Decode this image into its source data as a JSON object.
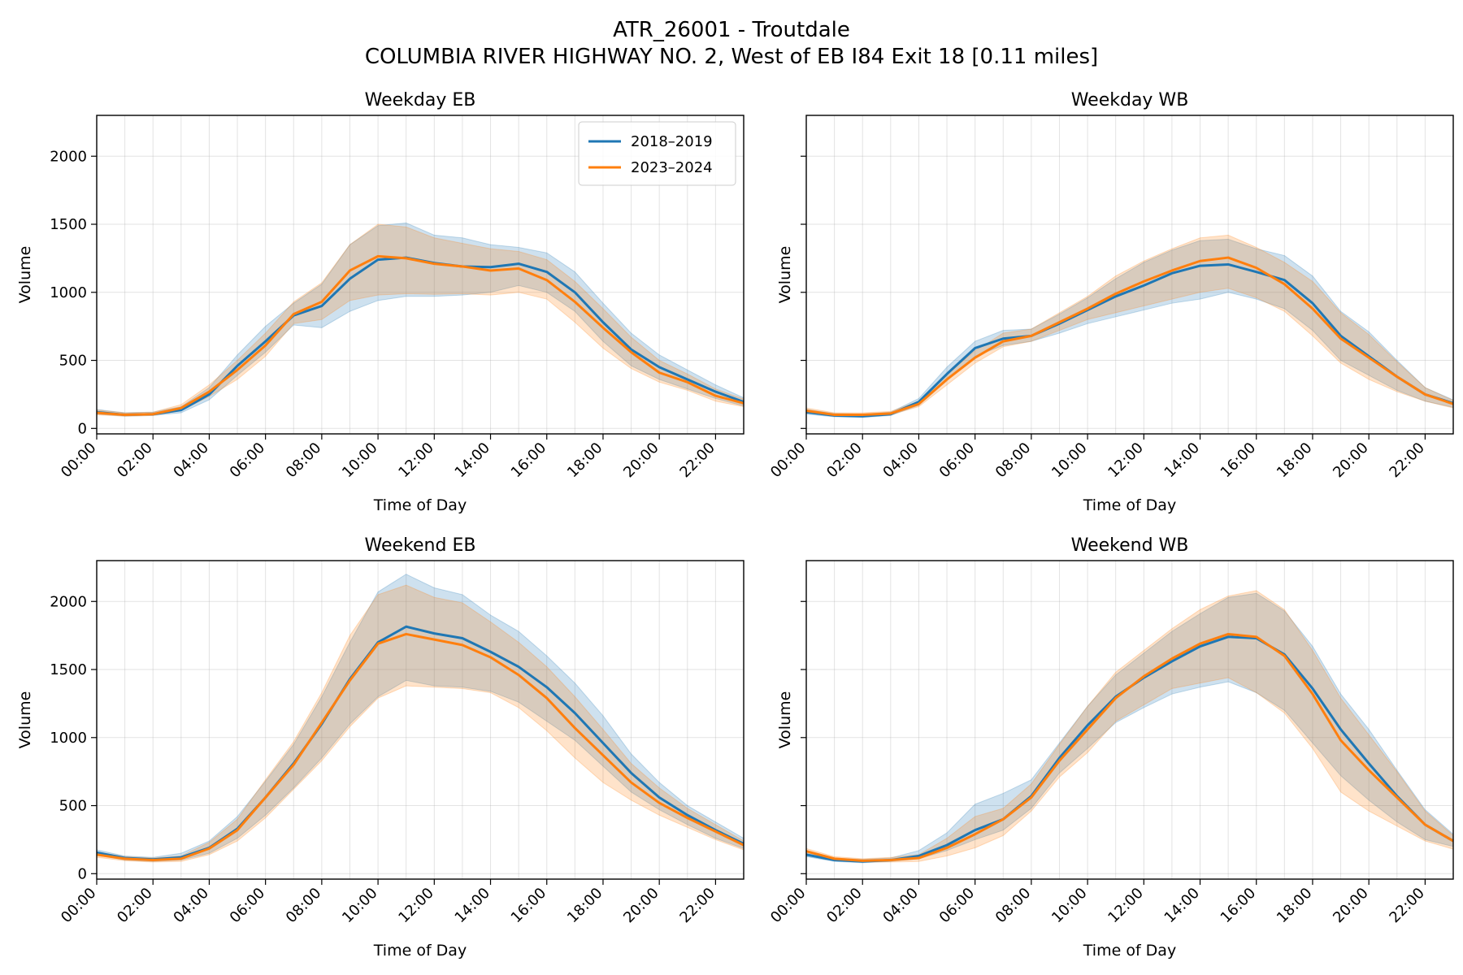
{
  "figure": {
    "title_line1": "ATR_26001 - Troutdale",
    "title_line2": "COLUMBIA RIVER HIGHWAY NO. 2, West of EB I84 Exit 18 [0.11 miles]"
  },
  "colors": {
    "series_2018_2019": "#1f77b4",
    "series_2023_2024": "#ff7f0e"
  },
  "chart_data": [
    {
      "type": "line",
      "title": "Weekday EB",
      "xlabel": "Time of Day",
      "ylabel": "Volume",
      "x_ticks": [
        "00:00",
        "02:00",
        "04:00",
        "06:00",
        "08:00",
        "10:00",
        "12:00",
        "14:00",
        "16:00",
        "18:00",
        "20:00",
        "22:00"
      ],
      "yticks": [
        0,
        500,
        1000,
        1500,
        2000
      ],
      "xlim": [
        0,
        23
      ],
      "ylim": [
        -40,
        2300
      ],
      "grid": true,
      "legend": "top-right",
      "hours": [
        0,
        1,
        2,
        3,
        4,
        5,
        6,
        7,
        8,
        9,
        10,
        11,
        12,
        13,
        14,
        15,
        16,
        17,
        18,
        19,
        20,
        21,
        22,
        23
      ],
      "series": [
        {
          "name": "2018–2019",
          "color": "#1f77b4",
          "values": [
            120,
            100,
            105,
            135,
            250,
            460,
            640,
            830,
            900,
            1100,
            1240,
            1255,
            1215,
            1190,
            1185,
            1210,
            1150,
            1000,
            780,
            580,
            450,
            360,
            270,
            195
          ],
          "lower": [
            105,
            90,
            95,
            115,
            210,
            390,
            560,
            760,
            740,
            860,
            940,
            970,
            970,
            980,
            1000,
            1050,
            1000,
            860,
            640,
            460,
            360,
            290,
            220,
            165
          ],
          "upper": [
            140,
            115,
            120,
            160,
            300,
            540,
            750,
            920,
            1060,
            1350,
            1490,
            1510,
            1420,
            1400,
            1350,
            1330,
            1290,
            1150,
            920,
            700,
            540,
            430,
            320,
            225
          ]
        },
        {
          "name": "2023–2024",
          "color": "#ff7f0e",
          "values": [
            115,
            100,
            105,
            150,
            270,
            430,
            610,
            840,
            930,
            1160,
            1265,
            1250,
            1210,
            1190,
            1160,
            1175,
            1090,
            930,
            740,
            560,
            410,
            340,
            240,
            185
          ],
          "lower": [
            100,
            90,
            95,
            130,
            235,
            360,
            530,
            770,
            800,
            940,
            980,
            990,
            985,
            990,
            980,
            1000,
            950,
            780,
            590,
            440,
            340,
            280,
            200,
            160
          ],
          "upper": [
            135,
            115,
            120,
            175,
            320,
            500,
            700,
            930,
            1070,
            1350,
            1500,
            1480,
            1400,
            1360,
            1320,
            1300,
            1240,
            1080,
            880,
            670,
            500,
            400,
            290,
            215
          ]
        }
      ]
    },
    {
      "type": "line",
      "title": "Weekday WB",
      "xlabel": "Time of Day",
      "ylabel": "Volume",
      "x_ticks": [
        "00:00",
        "02:00",
        "04:00",
        "06:00",
        "08:00",
        "10:00",
        "12:00",
        "14:00",
        "16:00",
        "18:00",
        "20:00",
        "22:00"
      ],
      "yticks": [
        0,
        500,
        1000,
        1500,
        2000
      ],
      "xlim": [
        0,
        23
      ],
      "ylim": [
        -40,
        2300
      ],
      "grid": true,
      "hours": [
        0,
        1,
        2,
        3,
        4,
        5,
        6,
        7,
        8,
        9,
        10,
        11,
        12,
        13,
        14,
        15,
        16,
        17,
        18,
        19,
        20,
        21,
        22,
        23
      ],
      "series": [
        {
          "name": "2018–2019",
          "color": "#1f77b4",
          "values": [
            120,
            95,
            90,
            105,
            195,
            400,
            590,
            660,
            680,
            770,
            870,
            970,
            1050,
            1140,
            1195,
            1205,
            1150,
            1090,
            920,
            680,
            530,
            380,
            250,
            185
          ],
          "lower": [
            105,
            85,
            80,
            95,
            170,
            350,
            530,
            610,
            640,
            700,
            770,
            820,
            870,
            920,
            950,
            1000,
            950,
            880,
            720,
            500,
            390,
            280,
            200,
            155
          ],
          "upper": [
            140,
            110,
            105,
            120,
            220,
            450,
            640,
            720,
            730,
            840,
            960,
            1100,
            1220,
            1310,
            1380,
            1390,
            1320,
            1270,
            1120,
            860,
            710,
            500,
            300,
            210
          ]
        },
        {
          "name": "2023–2024",
          "color": "#ff7f0e",
          "values": [
            130,
            100,
            100,
            110,
            180,
            360,
            520,
            640,
            680,
            780,
            880,
            990,
            1080,
            1160,
            1230,
            1255,
            1180,
            1060,
            880,
            660,
            520,
            380,
            250,
            180
          ],
          "lower": [
            115,
            90,
            90,
            100,
            160,
            320,
            480,
            600,
            640,
            720,
            800,
            850,
            900,
            950,
            1000,
            1030,
            960,
            860,
            680,
            480,
            360,
            270,
            200,
            150
          ],
          "upper": [
            150,
            115,
            115,
            125,
            200,
            400,
            570,
            700,
            730,
            850,
            970,
            1120,
            1230,
            1320,
            1400,
            1420,
            1330,
            1220,
            1080,
            850,
            690,
            490,
            300,
            205
          ]
        }
      ]
    },
    {
      "type": "line",
      "title": "Weekend EB",
      "xlabel": "Time of Day",
      "ylabel": "Volume",
      "x_ticks": [
        "00:00",
        "02:00",
        "04:00",
        "06:00",
        "08:00",
        "10:00",
        "12:00",
        "14:00",
        "16:00",
        "18:00",
        "20:00",
        "22:00"
      ],
      "yticks": [
        0,
        500,
        1000,
        1500,
        2000
      ],
      "xlim": [
        0,
        23
      ],
      "ylim": [
        -40,
        2300
      ],
      "grid": true,
      "hours": [
        0,
        1,
        2,
        3,
        4,
        5,
        6,
        7,
        8,
        9,
        10,
        11,
        12,
        13,
        14,
        15,
        16,
        17,
        18,
        19,
        20,
        21,
        22,
        23
      ],
      "series": [
        {
          "name": "2018–2019",
          "color": "#1f77b4",
          "values": [
            155,
            115,
            105,
            120,
            190,
            330,
            560,
            810,
            1100,
            1430,
            1700,
            1815,
            1765,
            1730,
            1630,
            1520,
            1370,
            1180,
            960,
            740,
            560,
            430,
            320,
            220
          ],
          "lower": [
            135,
            100,
            90,
            100,
            150,
            260,
            430,
            630,
            850,
            1100,
            1300,
            1420,
            1380,
            1370,
            1340,
            1260,
            1120,
            980,
            790,
            600,
            470,
            360,
            260,
            185
          ],
          "upper": [
            175,
            130,
            120,
            150,
            240,
            420,
            680,
            950,
            1300,
            1700,
            2070,
            2200,
            2100,
            2050,
            1900,
            1780,
            1600,
            1400,
            1160,
            880,
            670,
            500,
            380,
            260
          ]
        },
        {
          "name": "2023–2024",
          "color": "#ff7f0e",
          "values": [
            140,
            110,
            100,
            110,
            185,
            320,
            560,
            800,
            1110,
            1420,
            1690,
            1760,
            1720,
            1680,
            1590,
            1460,
            1290,
            1070,
            870,
            670,
            520,
            410,
            310,
            210
          ],
          "lower": [
            120,
            95,
            85,
            90,
            140,
            240,
            410,
            620,
            830,
            1080,
            1290,
            1380,
            1370,
            1360,
            1330,
            1220,
            1050,
            850,
            670,
            540,
            430,
            340,
            250,
            175
          ],
          "upper": [
            160,
            125,
            115,
            130,
            230,
            400,
            690,
            970,
            1330,
            1750,
            2050,
            2120,
            2030,
            1990,
            1850,
            1700,
            1520,
            1300,
            1060,
            810,
            630,
            480,
            360,
            240
          ]
        }
      ]
    },
    {
      "type": "line",
      "title": "Weekend WB",
      "xlabel": "Time of Day",
      "ylabel": "Volume",
      "x_ticks": [
        "00:00",
        "02:00",
        "04:00",
        "06:00",
        "08:00",
        "10:00",
        "12:00",
        "14:00",
        "16:00",
        "18:00",
        "20:00",
        "22:00"
      ],
      "yticks": [
        0,
        500,
        1000,
        1500,
        2000
      ],
      "xlim": [
        0,
        23
      ],
      "ylim": [
        -40,
        2300
      ],
      "grid": true,
      "hours": [
        0,
        1,
        2,
        3,
        4,
        5,
        6,
        7,
        8,
        9,
        10,
        11,
        12,
        13,
        14,
        15,
        16,
        17,
        18,
        19,
        20,
        21,
        22,
        23
      ],
      "series": [
        {
          "name": "2018–2019",
          "color": "#1f77b4",
          "values": [
            140,
            100,
            90,
            100,
            130,
            210,
            320,
            400,
            570,
            850,
            1090,
            1300,
            1440,
            1560,
            1670,
            1740,
            1730,
            1610,
            1360,
            1060,
            810,
            570,
            360,
            240
          ],
          "lower": [
            125,
            90,
            80,
            90,
            110,
            170,
            250,
            320,
            480,
            740,
            920,
            1110,
            1220,
            1320,
            1370,
            1410,
            1330,
            1200,
            960,
            720,
            540,
            380,
            250,
            200
          ],
          "upper": [
            160,
            115,
            105,
            115,
            170,
            300,
            510,
            590,
            690,
            960,
            1230,
            1460,
            1620,
            1780,
            1910,
            2030,
            2060,
            1930,
            1670,
            1320,
            1060,
            760,
            470,
            290
          ]
        },
        {
          "name": "2023–2024",
          "color": "#ff7f0e",
          "values": [
            165,
            110,
            95,
            100,
            115,
            190,
            290,
            400,
            560,
            830,
            1060,
            1290,
            1450,
            1580,
            1690,
            1760,
            1740,
            1600,
            1320,
            980,
            760,
            560,
            360,
            240
          ],
          "lower": [
            145,
            95,
            85,
            85,
            90,
            130,
            190,
            280,
            460,
            710,
            890,
            1120,
            1240,
            1360,
            1400,
            1440,
            1330,
            1180,
            920,
            600,
            460,
            350,
            240,
            180
          ],
          "upper": [
            185,
            125,
            110,
            120,
            140,
            260,
            420,
            480,
            660,
            950,
            1230,
            1480,
            1640,
            1800,
            1940,
            2040,
            2080,
            1940,
            1640,
            1290,
            1020,
            750,
            460,
            280
          ]
        }
      ]
    }
  ]
}
